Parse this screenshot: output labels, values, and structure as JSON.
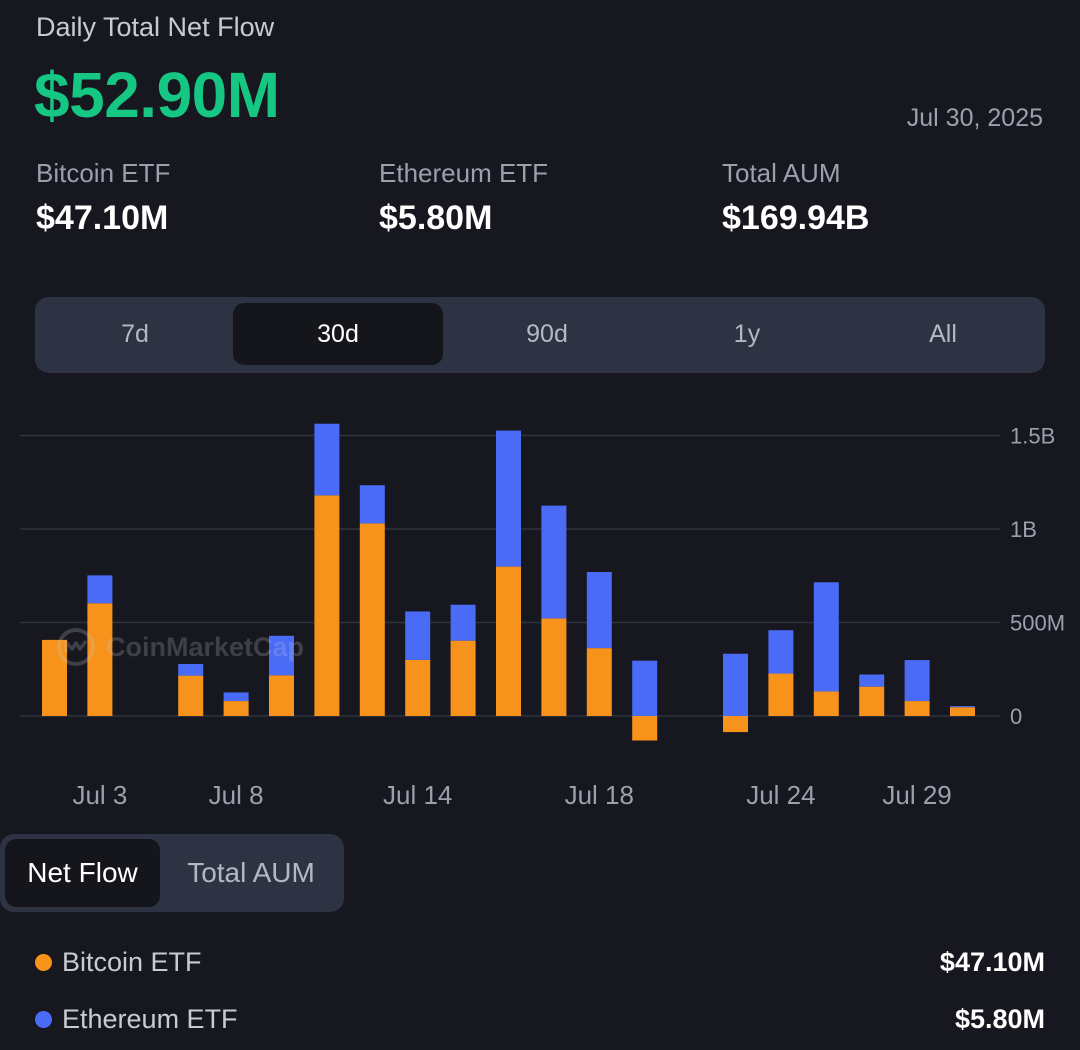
{
  "header": {
    "title": "Daily Total Net Flow",
    "net_flow": "$52.90M",
    "date": "Jul 30, 2025"
  },
  "stats": [
    {
      "label": "Bitcoin ETF",
      "value": "$47.10M"
    },
    {
      "label": "Ethereum ETF",
      "value": "$5.80M"
    },
    {
      "label": "Total AUM",
      "value": "$169.94B"
    }
  ],
  "ranges": {
    "items": [
      "7d",
      "30d",
      "90d",
      "1y",
      "All"
    ],
    "selected": "30d"
  },
  "watermark": "CoinMarketCap",
  "view_toggle": {
    "items": [
      "Net Flow",
      "Total AUM"
    ],
    "selected": "Net Flow"
  },
  "legend": [
    {
      "label": "Bitcoin ETF",
      "value": "$47.10M",
      "color": "#f7931a"
    },
    {
      "label": "Ethereum ETF",
      "value": "$5.80M",
      "color": "#4a6bf5"
    }
  ],
  "colors": {
    "accent_green": "#16c784",
    "bitcoin": "#f7931a",
    "ethereum": "#4a6bf5",
    "background": "#17171f"
  },
  "chart_data": {
    "type": "bar",
    "stacked": true,
    "x": [
      "Jul 2",
      "Jul 3",
      "Jul 4",
      "Jul 7",
      "Jul 8",
      "Jul 9",
      "Jul 10",
      "Jul 11",
      "Jul 14",
      "Jul 15",
      "Jul 16",
      "Jul 17",
      "Jul 18",
      "Jul 21",
      "Jul 22",
      "Jul 23",
      "Jul 24",
      "Jul 25",
      "Jul 28",
      "Jul 29",
      "Jul 30"
    ],
    "series": [
      {
        "name": "Bitcoin ETF",
        "color": "#f7931a",
        "values": [
          407,
          603,
          0,
          216,
          80,
          218,
          1180,
          1030,
          300,
          403,
          799,
          522,
          363,
          -131,
          0,
          -86,
          227,
          131,
          157,
          80,
          47.1
        ]
      },
      {
        "name": "Ethereum ETF",
        "color": "#4a6bf5",
        "values": [
          0,
          149,
          0,
          62,
          46,
          211,
          383,
          204,
          259,
          192,
          727,
          603,
          407,
          296,
          0,
          333,
          232,
          584,
          65,
          219,
          5.8
        ]
      }
    ],
    "xtick_labels": [
      "Jul 3",
      "Jul 8",
      "Jul 14",
      "Jul 18",
      "Jul 24",
      "Jul 29"
    ],
    "ytick_labels": [
      "1.5B",
      "1B",
      "500M",
      "0"
    ],
    "ylim": [
      -200,
      1600
    ],
    "ytick_values": [
      1500,
      1000,
      500,
      0
    ],
    "unit": "USD millions",
    "grid": true
  }
}
